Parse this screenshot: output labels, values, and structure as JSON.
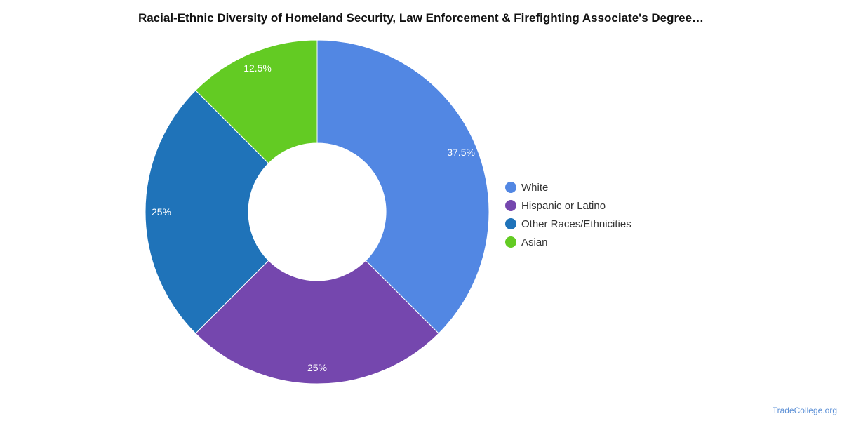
{
  "chart_data": {
    "type": "pie",
    "title": "Racial-Ethnic Diversity of Homeland Security, Law Enforcement & Firefighting Associate's Degree…",
    "donut": true,
    "legend_position": "right",
    "slices": [
      {
        "label": "White",
        "value": 37.5,
        "display": "37.5%",
        "color": "#5287e3"
      },
      {
        "label": "Hispanic or Latino",
        "value": 25,
        "display": "25%",
        "color": "#7547ae"
      },
      {
        "label": "Other Races/Ethnicities",
        "value": 25,
        "display": "25%",
        "color": "#1f73b9"
      },
      {
        "label": "Asian",
        "value": 12.5,
        "display": "12.5%",
        "color": "#63cb23"
      }
    ]
  },
  "footer": {
    "watermark": "TradeCollege.org"
  }
}
